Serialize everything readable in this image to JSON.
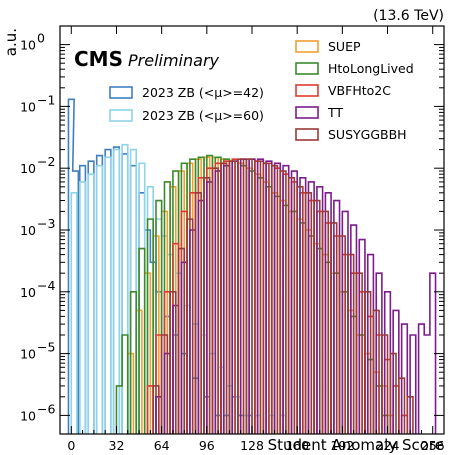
{
  "chart_data": {
    "type": "line",
    "title": "",
    "header_right": "(13.6 TeV)",
    "experiment": "CMS",
    "status": "Preliminary",
    "xlabel": "Student Anomaly Score",
    "ylabel": "a.u.",
    "xlim": [
      -8,
      264
    ],
    "ylim": [
      5e-07,
      2
    ],
    "yscale": "log",
    "xticks": [
      0,
      32,
      64,
      96,
      128,
      160,
      192,
      224,
      256
    ],
    "xtick_labels": [
      "0",
      "32",
      "64",
      "96",
      "128",
      "160",
      "192",
      "224",
      "256"
    ],
    "yticks": [
      1e-06,
      1e-05,
      0.0001,
      0.001,
      0.01,
      0.1,
      1
    ],
    "ytick_labels": [
      "10",
      "10",
      "10",
      "10",
      "10",
      "10",
      "10"
    ],
    "ytick_exponents": [
      "−6",
      "−5",
      "−4",
      "−3",
      "−2",
      "−1",
      "0"
    ],
    "legend_position": "top-right",
    "series": [
      {
        "name": "2023 ZB (<μ>=42)",
        "color": "#3f7fbf",
        "points": [
          [
            0,
            0.13
          ],
          [
            3,
            0.009
          ],
          [
            8,
            0.011
          ],
          [
            14,
            0.013
          ],
          [
            20,
            0.016
          ],
          [
            26,
            0.02
          ],
          [
            32,
            0.022
          ],
          [
            38,
            0.017
          ],
          [
            44,
            0.011
          ],
          [
            50,
            0.004
          ],
          [
            54,
            0.001
          ],
          [
            58,
            0.0003
          ],
          [
            62,
            0.0001
          ],
          [
            68,
            4e-05
          ],
          [
            74,
            2e-05
          ],
          [
            80,
            1e-05
          ],
          [
            88,
            4e-06
          ],
          [
            96,
            2e-06
          ],
          [
            104,
            1e-06
          ],
          [
            110,
            1e-06
          ],
          [
            116,
            2e-06
          ],
          [
            120,
            1e-06
          ],
          [
            126,
            1e-06
          ]
        ]
      },
      {
        "name": "2023 ZB (<μ>=60)",
        "color": "#8fd3e8",
        "points": [
          [
            2,
            0.004
          ],
          [
            8,
            0.006
          ],
          [
            14,
            0.008
          ],
          [
            20,
            0.011
          ],
          [
            26,
            0.015
          ],
          [
            32,
            0.02
          ],
          [
            38,
            0.024
          ],
          [
            44,
            0.02
          ],
          [
            50,
            0.012
          ],
          [
            56,
            0.005
          ],
          [
            62,
            0.0015
          ],
          [
            66,
            0.0008
          ],
          [
            70,
            0.0004
          ],
          [
            76,
            0.0002
          ],
          [
            82,
            6e-05
          ],
          [
            88,
            3e-05
          ],
          [
            94,
            2e-05
          ],
          [
            100,
            1e-05
          ],
          [
            106,
            6e-06
          ],
          [
            112,
            3e-06
          ],
          [
            118,
            2e-06
          ],
          [
            124,
            1e-06
          ],
          [
            132,
            1e-06
          ],
          [
            142,
            1e-06
          ],
          [
            150,
            1e-06
          ]
        ]
      },
      {
        "name": "SUEP",
        "color": "#f0a030",
        "points": [
          [
            42,
            1e-05
          ],
          [
            48,
            5e-05
          ],
          [
            54,
            0.0002
          ],
          [
            60,
            0.0008
          ],
          [
            66,
            0.002
          ],
          [
            72,
            0.005
          ],
          [
            78,
            0.009
          ],
          [
            84,
            0.012
          ],
          [
            90,
            0.014
          ],
          [
            96,
            0.015
          ],
          [
            102,
            0.015
          ],
          [
            108,
            0.014
          ],
          [
            114,
            0.013
          ],
          [
            120,
            0.012
          ],
          [
            126,
            0.01
          ],
          [
            132,
            0.008
          ],
          [
            138,
            0.006
          ],
          [
            144,
            0.004
          ],
          [
            150,
            0.003
          ],
          [
            156,
            0.002
          ],
          [
            162,
            0.0015
          ],
          [
            168,
            0.001
          ],
          [
            174,
            0.0006
          ],
          [
            180,
            0.0004
          ],
          [
            186,
            0.0002
          ],
          [
            192,
            0.0001
          ],
          [
            198,
            5e-05
          ],
          [
            204,
            2e-05
          ],
          [
            210,
            1e-05
          ],
          [
            216,
            5e-06
          ],
          [
            222,
            3e-06
          ],
          [
            226,
            1e-06
          ]
        ]
      },
      {
        "name": "HtoLongLived",
        "color": "#3c8a2e",
        "points": [
          [
            34,
            3e-06
          ],
          [
            38,
            2e-05
          ],
          [
            44,
            0.0001
          ],
          [
            50,
            0.0005
          ],
          [
            56,
            0.0015
          ],
          [
            62,
            0.003
          ],
          [
            68,
            0.006
          ],
          [
            74,
            0.009
          ],
          [
            80,
            0.012
          ],
          [
            86,
            0.014
          ],
          [
            92,
            0.015
          ],
          [
            98,
            0.016
          ],
          [
            104,
            0.015
          ],
          [
            110,
            0.014
          ],
          [
            116,
            0.013
          ],
          [
            122,
            0.011
          ],
          [
            128,
            0.009
          ],
          [
            134,
            0.007
          ],
          [
            140,
            0.005
          ],
          [
            146,
            0.0035
          ],
          [
            152,
            0.0025
          ],
          [
            158,
            0.002
          ],
          [
            164,
            0.0013
          ],
          [
            170,
            0.0008
          ],
          [
            176,
            0.0005
          ],
          [
            182,
            0.0003
          ],
          [
            188,
            0.0002
          ],
          [
            194,
            0.0001
          ],
          [
            200,
            4e-05
          ],
          [
            206,
            2e-05
          ],
          [
            212,
            8e-06
          ],
          [
            218,
            3e-06
          ],
          [
            222,
            1e-06
          ]
        ]
      },
      {
        "name": "VBFHto2C",
        "color": "#e03a2f",
        "points": [
          [
            56,
            3e-06
          ],
          [
            62,
            2e-05
          ],
          [
            68,
            0.0001
          ],
          [
            74,
            0.0006
          ],
          [
            80,
            0.002
          ],
          [
            86,
            0.004
          ],
          [
            92,
            0.007
          ],
          [
            98,
            0.01
          ],
          [
            104,
            0.012
          ],
          [
            110,
            0.013
          ],
          [
            116,
            0.014
          ],
          [
            122,
            0.014
          ],
          [
            128,
            0.014
          ],
          [
            134,
            0.013
          ],
          [
            140,
            0.012
          ],
          [
            146,
            0.01
          ],
          [
            152,
            0.008
          ],
          [
            158,
            0.006
          ],
          [
            164,
            0.004
          ],
          [
            170,
            0.003
          ],
          [
            176,
            0.002
          ],
          [
            182,
            0.0013
          ],
          [
            188,
            0.0008
          ],
          [
            194,
            0.0004
          ],
          [
            200,
            0.0002
          ],
          [
            206,
            0.0001
          ],
          [
            212,
            4e-05
          ],
          [
            218,
            2e-05
          ],
          [
            224,
            8e-06
          ],
          [
            230,
            3e-06
          ],
          [
            236,
            1e-06
          ]
        ]
      },
      {
        "name": "TT",
        "color": "#7b1e8c",
        "points": [
          [
            62,
            2e-06
          ],
          [
            68,
            1e-05
          ],
          [
            74,
            6e-05
          ],
          [
            80,
            0.0003
          ],
          [
            86,
            0.001
          ],
          [
            92,
            0.003
          ],
          [
            98,
            0.006
          ],
          [
            104,
            0.009
          ],
          [
            110,
            0.011
          ],
          [
            116,
            0.013
          ],
          [
            122,
            0.014
          ],
          [
            128,
            0.014
          ],
          [
            134,
            0.014
          ],
          [
            140,
            0.013
          ],
          [
            146,
            0.012
          ],
          [
            152,
            0.011
          ],
          [
            158,
            0.009
          ],
          [
            164,
            0.007
          ],
          [
            170,
            0.006
          ],
          [
            176,
            0.005
          ],
          [
            182,
            0.004
          ],
          [
            188,
            0.003
          ],
          [
            194,
            0.002
          ],
          [
            200,
            0.0012
          ],
          [
            206,
            0.0007
          ],
          [
            212,
            0.0004
          ],
          [
            218,
            0.0002
          ],
          [
            224,
            0.0001
          ],
          [
            230,
            5e-05
          ],
          [
            236,
            3e-05
          ],
          [
            242,
            2e-05
          ],
          [
            248,
            3e-05
          ],
          [
            252,
            2e-05
          ],
          [
            256,
            0.0002
          ]
        ]
      },
      {
        "name": "SUSYGGBBH",
        "color": "#9b3a3a",
        "points": [
          [
            60,
            3e-06
          ],
          [
            66,
            2e-05
          ],
          [
            72,
            0.0001
          ],
          [
            78,
            0.0005
          ],
          [
            84,
            0.0015
          ],
          [
            90,
            0.004
          ],
          [
            96,
            0.007
          ],
          [
            102,
            0.01
          ],
          [
            108,
            0.012
          ],
          [
            114,
            0.013
          ],
          [
            120,
            0.014
          ],
          [
            126,
            0.014
          ],
          [
            132,
            0.013
          ],
          [
            138,
            0.012
          ],
          [
            144,
            0.011
          ],
          [
            150,
            0.009
          ],
          [
            156,
            0.007
          ],
          [
            162,
            0.005
          ],
          [
            168,
            0.004
          ],
          [
            174,
            0.003
          ],
          [
            180,
            0.002
          ],
          [
            186,
            0.0013
          ],
          [
            192,
            0.0008
          ],
          [
            198,
            0.0004
          ],
          [
            204,
            0.0002
          ],
          [
            210,
            0.0001
          ],
          [
            216,
            5e-05
          ],
          [
            222,
            2e-05
          ],
          [
            228,
            1e-05
          ],
          [
            234,
            4e-06
          ],
          [
            240,
            2e-06
          ]
        ]
      }
    ]
  }
}
